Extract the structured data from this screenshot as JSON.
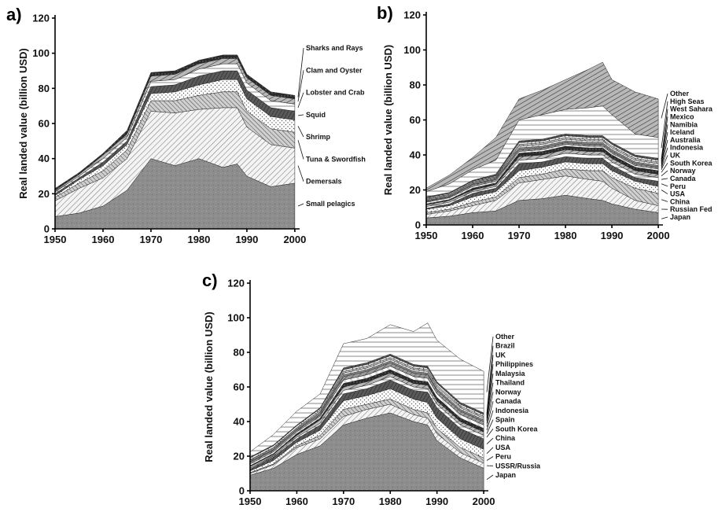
{
  "chart_data": [
    {
      "panel_label": "a)",
      "type": "area",
      "stacked": true,
      "ylabel": "Real landed value (billion USD)",
      "xlim": [
        1950,
        2001
      ],
      "ylim": [
        0,
        120
      ],
      "x_ticks": [
        "1950",
        "1960",
        "1970",
        "1980",
        "1990",
        "2000"
      ],
      "y_ticks": [
        "0",
        "20",
        "40",
        "60",
        "80",
        "100",
        "120"
      ],
      "x": [
        1950,
        1955,
        1960,
        1965,
        1970,
        1975,
        1980,
        1985,
        1988,
        1990,
        1995,
        2000
      ],
      "series": [
        {
          "name": "Small pelagics",
          "values": [
            7,
            9,
            13,
            22,
            40,
            36,
            40,
            35,
            37,
            30,
            24,
            26
          ]
        },
        {
          "name": "Demersals",
          "values": [
            9,
            14,
            16,
            18,
            27,
            30,
            28,
            34,
            32,
            28,
            24,
            20
          ]
        },
        {
          "name": "Tuna & Swordfish",
          "values": [
            2,
            3,
            4,
            5,
            6,
            7,
            8,
            9,
            9,
            9,
            9,
            9
          ]
        },
        {
          "name": "Shrimp",
          "values": [
            1,
            2,
            3,
            3,
            4,
            5,
            6,
            7,
            7,
            7,
            7,
            7
          ]
        },
        {
          "name": "Squid",
          "values": [
            1,
            1,
            2,
            2,
            4,
            4,
            5,
            5,
            5,
            5,
            5,
            5
          ]
        },
        {
          "name": "Lobster and Crab",
          "values": [
            1,
            1,
            2,
            2,
            3,
            3,
            4,
            4,
            4,
            4,
            4,
            4
          ]
        },
        {
          "name": "Clam and Oyster",
          "values": [
            1,
            1,
            2,
            2,
            3,
            3,
            3,
            3,
            3,
            3,
            3,
            3
          ]
        },
        {
          "name": "Sharks and Rays",
          "values": [
            1,
            1,
            1,
            2,
            2,
            2,
            2,
            2,
            2,
            2,
            2,
            2
          ]
        }
      ]
    },
    {
      "panel_label": "b)",
      "type": "area",
      "stacked": true,
      "ylabel": "Real landed value (billion USD)",
      "xlim": [
        1950,
        2001
      ],
      "ylim": [
        0,
        120
      ],
      "x_ticks": [
        "1950",
        "1960",
        "1970",
        "1980",
        "1990",
        "2000"
      ],
      "y_ticks": [
        "0",
        "20",
        "40",
        "60",
        "80",
        "100",
        "120"
      ],
      "x": [
        1950,
        1955,
        1960,
        1965,
        1970,
        1975,
        1980,
        1985,
        1988,
        1990,
        1995,
        2000
      ],
      "series": [
        {
          "name": "Japan",
          "values": [
            4,
            5,
            7,
            8,
            14,
            15,
            17,
            15,
            14,
            12,
            9,
            7
          ]
        },
        {
          "name": "Russian Fed",
          "values": [
            2,
            3,
            4,
            6,
            10,
            11,
            11,
            11,
            11,
            9,
            5,
            4
          ]
        },
        {
          "name": "China",
          "values": [
            1,
            1,
            2,
            2,
            3,
            3,
            4,
            5,
            6,
            6,
            7,
            7
          ]
        },
        {
          "name": "USA",
          "values": [
            2,
            2,
            3,
            3,
            4,
            4,
            4,
            4,
            4,
            4,
            4,
            4
          ]
        },
        {
          "name": "Peru",
          "values": [
            0.5,
            1,
            2,
            2,
            4,
            3,
            3,
            3,
            3,
            3,
            2,
            3
          ]
        },
        {
          "name": "Canada",
          "values": [
            1,
            1,
            1,
            1,
            2,
            2,
            2,
            2,
            2,
            2,
            2,
            2
          ]
        },
        {
          "name": "Norway",
          "values": [
            1,
            1,
            1,
            1,
            2,
            2,
            2,
            2,
            2,
            2,
            2,
            2
          ]
        },
        {
          "name": "South Korea",
          "values": [
            0.5,
            0.5,
            1,
            1,
            2,
            2,
            2,
            2,
            2,
            2,
            2,
            2
          ]
        },
        {
          "name": "UK",
          "values": [
            1,
            1,
            1,
            1,
            1,
            1,
            1,
            1,
            1,
            1,
            1,
            1
          ]
        },
        {
          "name": "Indonesia",
          "values": [
            0.5,
            0.5,
            1,
            1,
            1,
            1,
            1,
            1,
            1,
            1,
            1,
            1
          ]
        },
        {
          "name": "Australia",
          "values": [
            0.5,
            0.5,
            0.5,
            0.5,
            1,
            1,
            1,
            1,
            1,
            1,
            1,
            1
          ]
        },
        {
          "name": "Iceland",
          "values": [
            0.5,
            0.5,
            0.5,
            0.5,
            1,
            1,
            1,
            1,
            1,
            1,
            1,
            1
          ]
        },
        {
          "name": "Namibia",
          "values": [
            0.5,
            0.5,
            0.5,
            0.5,
            1,
            1,
            1,
            1,
            1,
            1,
            1,
            1
          ]
        },
        {
          "name": "Mexico",
          "values": [
            0.5,
            0.5,
            0.5,
            0.5,
            1,
            1,
            1,
            1,
            1,
            1,
            1,
            1
          ]
        },
        {
          "name": "West Sahara",
          "values": [
            0.5,
            0.5,
            0.5,
            1,
            1,
            1,
            1,
            1,
            1,
            1,
            1,
            1
          ]
        },
        {
          "name": "High Seas",
          "values": [
            3,
            5,
            6,
            8,
            12,
            14,
            14,
            16,
            17,
            16,
            12,
            12
          ]
        },
        {
          "name": "Other",
          "values": [
            2,
            5,
            7,
            13,
            12,
            14,
            17,
            22,
            25,
            20,
            24,
            22
          ]
        }
      ]
    },
    {
      "panel_label": "c)",
      "type": "area",
      "stacked": true,
      "ylabel": "Real landed value (billion USD)",
      "xlim": [
        1950,
        2001
      ],
      "ylim": [
        0,
        120
      ],
      "x_ticks": [
        "1950",
        "1960",
        "1970",
        "1980",
        "1990",
        "2000"
      ],
      "y_ticks": [
        "0",
        "20",
        "40",
        "60",
        "80",
        "100",
        "120"
      ],
      "x": [
        1950,
        1955,
        1960,
        1965,
        1970,
        1975,
        1980,
        1985,
        1988,
        1990,
        1995,
        2000
      ],
      "series": [
        {
          "name": "Japan",
          "values": [
            9,
            13,
            21,
            26,
            38,
            42,
            45,
            40,
            38,
            29,
            19,
            13
          ]
        },
        {
          "name": "USSR/Russia",
          "values": [
            1,
            2,
            4,
            4,
            5,
            5,
            5,
            4,
            4,
            4,
            3,
            3
          ]
        },
        {
          "name": "Peru",
          "values": [
            0.5,
            0.5,
            1,
            2,
            4,
            3,
            3,
            3,
            3,
            3,
            3,
            3
          ]
        },
        {
          "name": "USA",
          "values": [
            1,
            2,
            2,
            3,
            5,
            5,
            6,
            6,
            6,
            6,
            5,
            5
          ]
        },
        {
          "name": "China",
          "values": [
            1,
            2,
            2,
            3,
            4,
            4,
            5,
            5,
            6,
            6,
            6,
            6
          ]
        },
        {
          "name": "South Korea",
          "values": [
            0.5,
            0.5,
            1,
            1,
            2,
            2,
            2,
            2,
            2,
            2,
            2,
            2
          ]
        },
        {
          "name": "Spain",
          "values": [
            1,
            1,
            1,
            2,
            2,
            2,
            2,
            2,
            2,
            2,
            2,
            2
          ]
        },
        {
          "name": "Indonesia",
          "values": [
            0.5,
            0.5,
            1,
            1,
            2,
            2,
            2,
            2,
            2,
            2,
            2,
            2
          ]
        },
        {
          "name": "Canada",
          "values": [
            1,
            1,
            1,
            1,
            2,
            2,
            2,
            2,
            2,
            2,
            2,
            2
          ]
        },
        {
          "name": "Norway",
          "values": [
            1,
            1,
            1,
            1,
            2,
            2,
            2,
            2,
            2,
            2,
            2,
            2
          ]
        },
        {
          "name": "Thailand",
          "values": [
            0.5,
            0.5,
            0.5,
            1,
            1,
            1,
            1,
            1,
            1,
            1,
            1,
            1
          ]
        },
        {
          "name": "Malaysia",
          "values": [
            0.5,
            0.5,
            0.5,
            0.5,
            1,
            1,
            1,
            1,
            1,
            1,
            1,
            1
          ]
        },
        {
          "name": "Philippines",
          "values": [
            0.5,
            0.5,
            0.5,
            1,
            1,
            1,
            1,
            1,
            1,
            1,
            1,
            1
          ]
        },
        {
          "name": "UK",
          "values": [
            1,
            1,
            1,
            1,
            1,
            1,
            1,
            1,
            1,
            1,
            1,
            1
          ]
        },
        {
          "name": "Brazil",
          "values": [
            0.5,
            0.5,
            0.5,
            0.5,
            1,
            1,
            1,
            1,
            1,
            1,
            1,
            1
          ]
        },
        {
          "name": "Other",
          "values": [
            3,
            6,
            8,
            8,
            14,
            14,
            17,
            19,
            25,
            24,
            25,
            24
          ]
        }
      ]
    }
  ]
}
